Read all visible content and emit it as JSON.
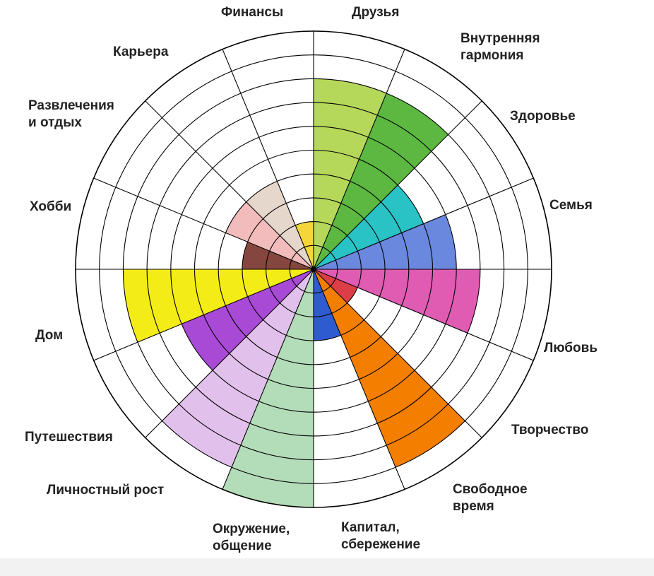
{
  "chart_data": {
    "type": "polar-bar",
    "title": "",
    "max_level": 10,
    "rings": 10,
    "grid": true,
    "categories": [
      {
        "label": "Друзья",
        "value": 8,
        "color": "#b5d85a"
      },
      {
        "label": "Внутренняя\nгармония",
        "value": 8,
        "color": "#5cb840"
      },
      {
        "label": "Здоровье",
        "value": 5,
        "color": "#29c3c6"
      },
      {
        "label": "Семья",
        "value": 6,
        "color": "#6b88df"
      },
      {
        "label": "Любовь",
        "value": 7,
        "color": "#e05cb3"
      },
      {
        "label": "Творчество",
        "value": 2,
        "color": "#dc3e47"
      },
      {
        "label": "Свободное\nвремя",
        "value": 9,
        "color": "#f47e00"
      },
      {
        "label": "Капитал,\nсбережение",
        "value": 3,
        "color": "#2f5bd0"
      },
      {
        "label": "Окружение,\nобщение",
        "value": 10,
        "color": "#b3dcb8"
      },
      {
        "label": "Личностный рост",
        "value": 9,
        "color": "#e2c0ec"
      },
      {
        "label": "Путешествия",
        "value": 6,
        "color": "#a94ad6"
      },
      {
        "label": "Дом",
        "value": 8,
        "color": "#f4ec16"
      },
      {
        "label": "Хобби",
        "value": 3,
        "color": "#84463e"
      },
      {
        "label": "Развлечения\nи отдых",
        "value": 4,
        "color": "#f3bcbc"
      },
      {
        "label": "Карьера",
        "value": 4,
        "color": "#e6d7cc"
      },
      {
        "label": "Финансы",
        "value": 2,
        "color": "#f5d638"
      }
    ]
  }
}
